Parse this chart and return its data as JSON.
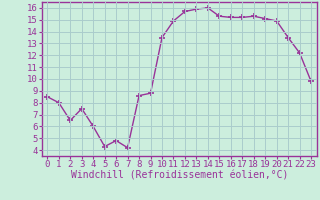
{
  "x": [
    0,
    1,
    2,
    3,
    4,
    5,
    6,
    7,
    8,
    9,
    10,
    11,
    12,
    13,
    14,
    15,
    16,
    17,
    18,
    19,
    20,
    21,
    22,
    23
  ],
  "y": [
    8.5,
    8.0,
    6.5,
    7.5,
    6.0,
    4.3,
    4.8,
    4.2,
    8.6,
    8.8,
    13.5,
    14.9,
    15.7,
    15.9,
    16.0,
    15.3,
    15.2,
    15.2,
    15.3,
    15.1,
    14.9,
    13.5,
    12.2,
    9.8
  ],
  "line_color": "#993399",
  "marker": "+",
  "marker_size": 4,
  "marker_lw": 1.2,
  "line_width": 1.0,
  "bg_color": "#cceedd",
  "grid_color": "#aacccc",
  "xlabel": "Windchill (Refroidissement éolien,°C)",
  "xlim": [
    -0.5,
    23.5
  ],
  "ylim": [
    3.5,
    16.5
  ],
  "yticks": [
    4,
    5,
    6,
    7,
    8,
    9,
    10,
    11,
    12,
    13,
    14,
    15,
    16
  ],
  "xticks": [
    0,
    1,
    2,
    3,
    4,
    5,
    6,
    7,
    8,
    9,
    10,
    11,
    12,
    13,
    14,
    15,
    16,
    17,
    18,
    19,
    20,
    21,
    22,
    23
  ],
  "spine_color": "#993399",
  "tick_color": "#993399",
  "label_color": "#993399",
  "label_fontsize": 7.0,
  "tick_fontsize": 6.5
}
